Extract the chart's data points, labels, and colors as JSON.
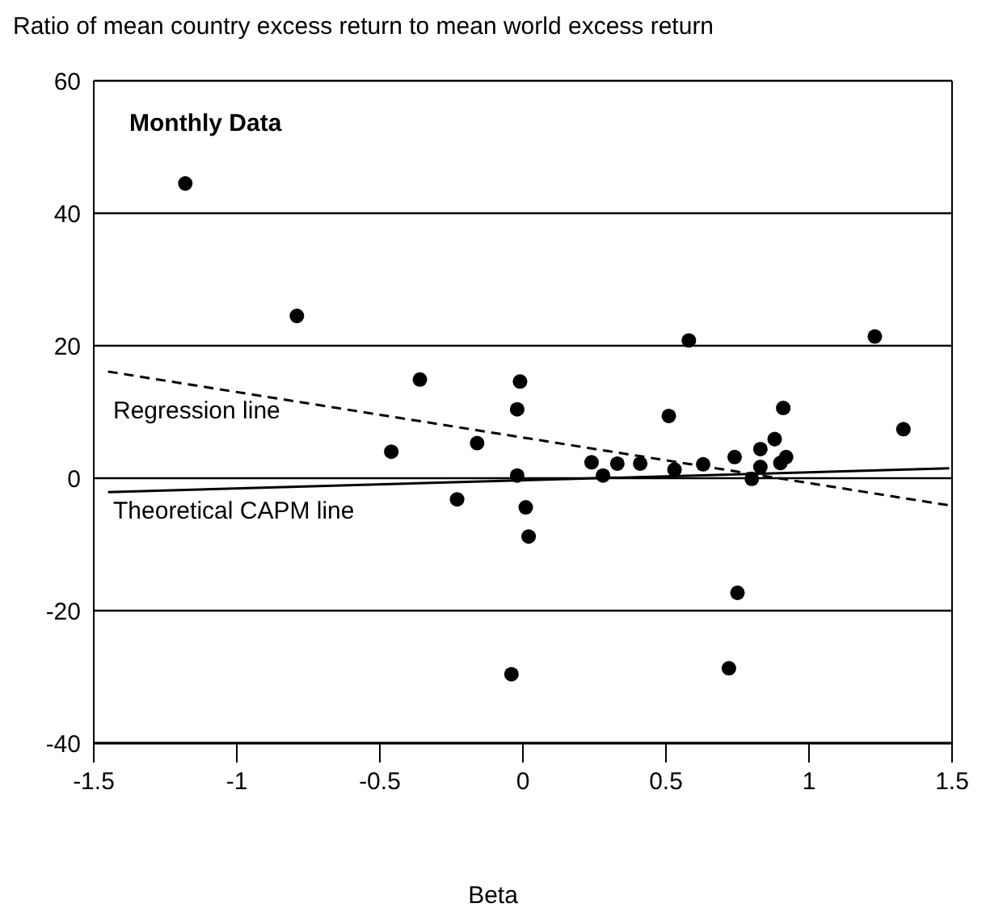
{
  "chart_data": {
    "type": "scatter",
    "ylabel": "Ratio of mean country excess return to mean world excess return",
    "xlabel": "Beta",
    "annotations": [
      "Monthly Data",
      "Regression line",
      "Theoretical CAPM line"
    ],
    "series": [
      {
        "color": "#000000",
        "marker": "circle",
        "x": [
          -1.18,
          -0.79,
          -0.36,
          -0.01,
          0.58,
          1.23,
          -0.02,
          0.51,
          0.91,
          1.33,
          -0.46,
          -0.16,
          0.88,
          0.83,
          0.74,
          0.92,
          0.9,
          0.83,
          0.24,
          0.33,
          0.41,
          0.63,
          0.53,
          0.28,
          -0.02,
          0.8,
          -0.23,
          0.01,
          0.02,
          0.75,
          -0.04,
          0.72
        ],
        "values": [
          44.5,
          24.5,
          14.9,
          14.6,
          20.8,
          21.4,
          10.4,
          9.4,
          10.6,
          7.4,
          4.0,
          5.3,
          5.9,
          4.4,
          3.2,
          3.2,
          2.3,
          1.7,
          2.4,
          2.2,
          2.2,
          2.1,
          1.3,
          0.4,
          0.4,
          -0.1,
          -3.2,
          -4.4,
          -8.8,
          -17.3,
          -29.6,
          -28.7
        ]
      },
      {
        "type": "line",
        "color": "#000000",
        "line_style": "dashed",
        "marker": "none",
        "x": [
          -1.45,
          1.49
        ],
        "values": [
          16.1,
          -4.1
        ]
      },
      {
        "type": "line",
        "color": "#000000",
        "line_style": "solid",
        "marker": "none",
        "x": [
          -1.45,
          1.49
        ],
        "values": [
          -2.1,
          1.5
        ]
      }
    ],
    "xlim": [
      -1.5,
      1.5
    ],
    "xticks": [
      -1.5,
      -1,
      -0.5,
      0,
      0.5,
      1,
      1.5
    ],
    "ylim": [
      -40,
      60
    ],
    "yticks": [
      -40,
      -20,
      0,
      20,
      40,
      60
    ],
    "grid": "y"
  }
}
